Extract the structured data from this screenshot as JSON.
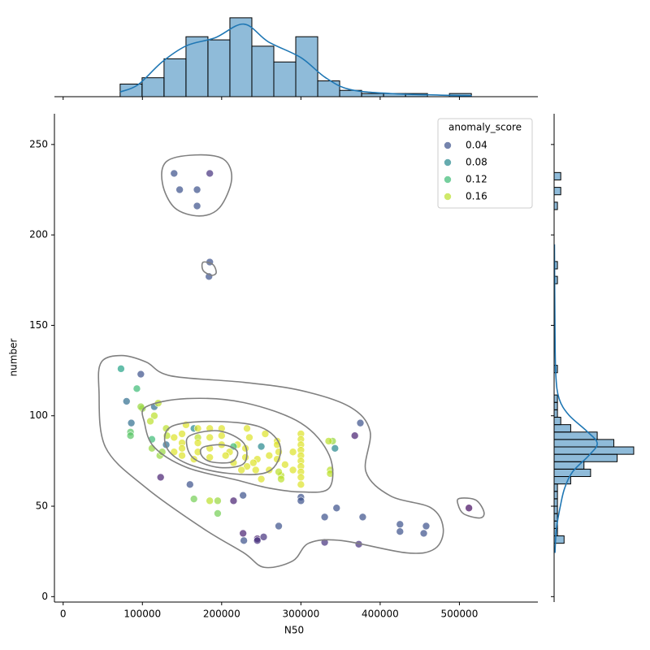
{
  "chart_data": {
    "type": "scatter",
    "x_label": "N50",
    "y_label": "number",
    "xlim": [
      -11000,
      599000
    ],
    "ylim": [
      -3,
      267
    ],
    "xticks": [
      0,
      100000,
      200000,
      300000,
      400000,
      500000
    ],
    "yticks": [
      0,
      50,
      100,
      150,
      200,
      250
    ],
    "colormap": "viridis",
    "hue_norm": [
      -0.006,
      0.179
    ],
    "legend": {
      "title": "anomaly_score",
      "values": [
        0.04,
        0.08,
        0.12,
        0.16
      ],
      "corner": "upper right"
    },
    "x": [
      140000,
      185000,
      147000,
      169000,
      169000,
      185000,
      184000,
      98000,
      73000,
      80000,
      93000,
      86000,
      85000,
      85000,
      100000,
      98000,
      115000,
      120000,
      115000,
      110000,
      112000,
      112000,
      122000,
      125000,
      130000,
      123000,
      130000,
      131000,
      165000,
      160000,
      165000,
      195000,
      185000,
      195000,
      215000,
      227000,
      228000,
      227000,
      245000,
      245000,
      253000,
      272000,
      300000,
      300000,
      330000,
      345000,
      330000,
      373000,
      378000,
      425000,
      425000,
      458000,
      455000,
      512000,
      368000,
      375000,
      343000,
      340000,
      335000,
      337000,
      337000,
      275000,
      275000,
      272000,
      280000,
      290000,
      300000,
      300000,
      300000,
      300000,
      300000,
      300000,
      300000,
      300000,
      300000,
      300000,
      270000,
      270000,
      272000,
      270000,
      255000,
      250000,
      245000,
      240000,
      243000,
      232000,
      235000,
      230000,
      230000,
      232000,
      225000,
      220000,
      215000,
      210000,
      205000,
      200000,
      200000,
      200000,
      185000,
      185000,
      185000,
      185000,
      170000,
      170000,
      170000,
      170000,
      165000,
      155000,
      150000,
      150000,
      150000,
      150000,
      140000,
      140000,
      260000,
      260000,
      250000,
      215000,
      290000
    ],
    "y": [
      234,
      234,
      225,
      225,
      216,
      185,
      177,
      123,
      126,
      108,
      115,
      96,
      91,
      89,
      104,
      105,
      105,
      107,
      100,
      97,
      87,
      82,
      78,
      80,
      84,
      66,
      93,
      89,
      93,
      62,
      54,
      53,
      53,
      46,
      53,
      56,
      31,
      35,
      32,
      31,
      33,
      39,
      55,
      53,
      44,
      49,
      30,
      29,
      44,
      40,
      36,
      39,
      35,
      49,
      89,
      96,
      82,
      86,
      86,
      70,
      68,
      67,
      65,
      69,
      73,
      80,
      90,
      87,
      84,
      81,
      78,
      75,
      72,
      69,
      66,
      62,
      86,
      84,
      80,
      76,
      90,
      83,
      76,
      74,
      70,
      93,
      88,
      82,
      77,
      72,
      70,
      84,
      83,
      80,
      78,
      84,
      89,
      93,
      93,
      88,
      82,
      77,
      93,
      88,
      85,
      80,
      76,
      95,
      90,
      85,
      82,
      78,
      88,
      80,
      78,
      70,
      65,
      74,
      70
    ],
    "hue": [
      0.04,
      0.02,
      0.04,
      0.04,
      0.04,
      0.04,
      0.04,
      0.04,
      0.1,
      0.06,
      0.12,
      0.06,
      0.13,
      0.13,
      0.15,
      0.15,
      0.06,
      0.16,
      0.16,
      0.16,
      0.12,
      0.15,
      0.15,
      0.15,
      0.06,
      0.01,
      0.16,
      0.16,
      0.08,
      0.04,
      0.14,
      0.15,
      0.16,
      0.14,
      0.01,
      0.04,
      0.04,
      0.01,
      0.01,
      0.02,
      0.02,
      0.04,
      0.04,
      0.04,
      0.04,
      0.04,
      0.02,
      0.02,
      0.04,
      0.04,
      0.04,
      0.04,
      0.04,
      0.0,
      0.01,
      0.04,
      0.08,
      0.15,
      0.16,
      0.16,
      0.16,
      0.16,
      0.16,
      0.16,
      0.17,
      0.17,
      0.17,
      0.17,
      0.17,
      0.17,
      0.17,
      0.17,
      0.17,
      0.17,
      0.17,
      0.17,
      0.17,
      0.17,
      0.17,
      0.17,
      0.17,
      0.08,
      0.17,
      0.17,
      0.17,
      0.17,
      0.17,
      0.17,
      0.17,
      0.17,
      0.17,
      0.17,
      0.12,
      0.17,
      0.17,
      0.17,
      0.17,
      0.17,
      0.17,
      0.17,
      0.17,
      0.17,
      0.17,
      0.16,
      0.17,
      0.17,
      0.17,
      0.17,
      0.17,
      0.17,
      0.17,
      0.17,
      0.17,
      0.17,
      0.17,
      0.17,
      0.17,
      0.17,
      0.17
    ],
    "contours": [
      [
        [
          48300,
          129.7
        ],
        [
          73900,
          133.3
        ],
        [
          104800,
          129.7
        ],
        [
          135600,
          122.1
        ],
        [
          228000,
          118.5
        ],
        [
          299900,
          114
        ],
        [
          361500,
          105
        ],
        [
          387200,
          91.6
        ],
        [
          382000,
          69.1
        ],
        [
          412900,
          55.7
        ],
        [
          464200,
          49.1
        ],
        [
          479600,
          37.7
        ],
        [
          469300,
          26.6
        ],
        [
          433400,
          24.2
        ],
        [
          351200,
          31
        ],
        [
          310200,
          29.6
        ],
        [
          289600,
          19.7
        ],
        [
          253700,
          16.2
        ],
        [
          228000,
          24.2
        ],
        [
          176600,
          37.7
        ],
        [
          104800,
          60.1
        ],
        [
          53400,
          82.6
        ],
        [
          45200,
          114
        ]
      ],
      [
        [
          104800,
          105
        ],
        [
          156100,
          109.5
        ],
        [
          228000,
          107.3
        ],
        [
          299900,
          96
        ],
        [
          335800,
          78.1
        ],
        [
          335800,
          60.1
        ],
        [
          299900,
          57.9
        ],
        [
          258800,
          60.1
        ],
        [
          217700,
          64.6
        ],
        [
          156100,
          71.4
        ],
        [
          115000,
          82.6
        ],
        [
          102700,
          96
        ]
      ],
      [
        [
          135600,
          93.8
        ],
        [
          186900,
          96.9
        ],
        [
          248500,
          93.8
        ],
        [
          274200,
          82.6
        ],
        [
          258800,
          69.1
        ],
        [
          207500,
          68.2
        ],
        [
          156100,
          73.6
        ],
        [
          130400,
          82.6
        ]
      ],
      [
        [
          161200,
          89.3
        ],
        [
          197200,
          91.6
        ],
        [
          228000,
          84.8
        ],
        [
          228000,
          73.6
        ],
        [
          197200,
          71.4
        ],
        [
          166400,
          75.9
        ],
        [
          156100,
          83.5
        ]
      ],
      [
        [
          176600,
          82.6
        ],
        [
          202300,
          83.9
        ],
        [
          219800,
          80.3
        ],
        [
          212600,
          74.5
        ],
        [
          186900,
          74.5
        ],
        [
          174600,
          78.1
        ]
      ],
      [
        [
          130400,
          240.6
        ],
        [
          166400,
          244.2
        ],
        [
          202300,
          241.9
        ],
        [
          212600,
          230.7
        ],
        [
          197200,
          215
        ],
        [
          171500,
          210.5
        ],
        [
          140700,
          215
        ],
        [
          125300,
          228.5
        ]
      ],
      [
        [
          176600,
          184.9
        ],
        [
          189000,
          183.6
        ],
        [
          193100,
          179.1
        ],
        [
          186900,
          177.7
        ],
        [
          176600,
          180.4
        ]
      ],
      [
        [
          500100,
          54.3
        ],
        [
          520700,
          53.4
        ],
        [
          531000,
          46.7
        ],
        [
          525800,
          43.5
        ],
        [
          505300,
          45.8
        ],
        [
          498100,
          51.2
        ]
      ]
    ],
    "contour_color": "#808080",
    "marginal_x": {
      "type": "histogram",
      "color": "#1f77b4",
      "ylim": [
        0,
        26
      ],
      "bins": [
        71900,
        99600,
        127300,
        155000,
        182700,
        210400,
        238100,
        265800,
        293500,
        321200,
        348900,
        376600,
        404300,
        432000,
        459700,
        487400,
        515100
      ],
      "counts": [
        4,
        6,
        12,
        19,
        18,
        25,
        16,
        11,
        19,
        5,
        2,
        1,
        1,
        1,
        0,
        1
      ],
      "kde_x": [
        71900,
        94500,
        125300,
        156100,
        192100,
        228000,
        258800,
        299900,
        330700,
        361500,
        412900,
        474500,
        515600
      ],
      "kde_y": [
        1.5,
        3.8,
        11.1,
        16.2,
        18.7,
        23,
        17.4,
        12.4,
        6.1,
        2.3,
        1,
        0.5,
        0.3
      ]
    },
    "marginal_y": {
      "type": "histogram",
      "color": "#1f77b4",
      "xlim": [
        0,
        24.5
      ],
      "bins": [
        29.5,
        33.6,
        37.7,
        41.8,
        45.9,
        50,
        54.1,
        58.2,
        62.3,
        66.4,
        70.5,
        74.6,
        78.7,
        82.8,
        86.9,
        91,
        95.1,
        99.2,
        103.3,
        107.4,
        111.5,
        115.6,
        119.7,
        123.8,
        127.9,
        132,
        136.1,
        140.2,
        144.3,
        148.4,
        152.5,
        156.6,
        160.7,
        164.8,
        168.9,
        173,
        177.1,
        181.2,
        185.3,
        189.4,
        193.5,
        197.6,
        201.7,
        205.8,
        209.9,
        214,
        218.1,
        222.2,
        226.3,
        230.4,
        234.5
      ],
      "counts": [
        3,
        1,
        1,
        1,
        1,
        1,
        1,
        1,
        5,
        11,
        9,
        19,
        24,
        18,
        13,
        5,
        2,
        1,
        1,
        1,
        0,
        0,
        0,
        1,
        0,
        0,
        0,
        0,
        0,
        0,
        0,
        0,
        0,
        0,
        0,
        1,
        0,
        1,
        0,
        0,
        0,
        0,
        0,
        0,
        0,
        1,
        0,
        2,
        0,
        2
      ],
      "kde_y": [
        24.2,
        37.7,
        51.2,
        60.1,
        69.1,
        78.1,
        84.8,
        91.6,
        100.5,
        109.5,
        123,
        149.9,
        194.8
      ],
      "kde_x": [
        0.25,
        0.7,
        2,
        3.2,
        5.6,
        10.5,
        13,
        9.8,
        4.4,
        1.5,
        0.5,
        0.25,
        0.1
      ]
    }
  }
}
